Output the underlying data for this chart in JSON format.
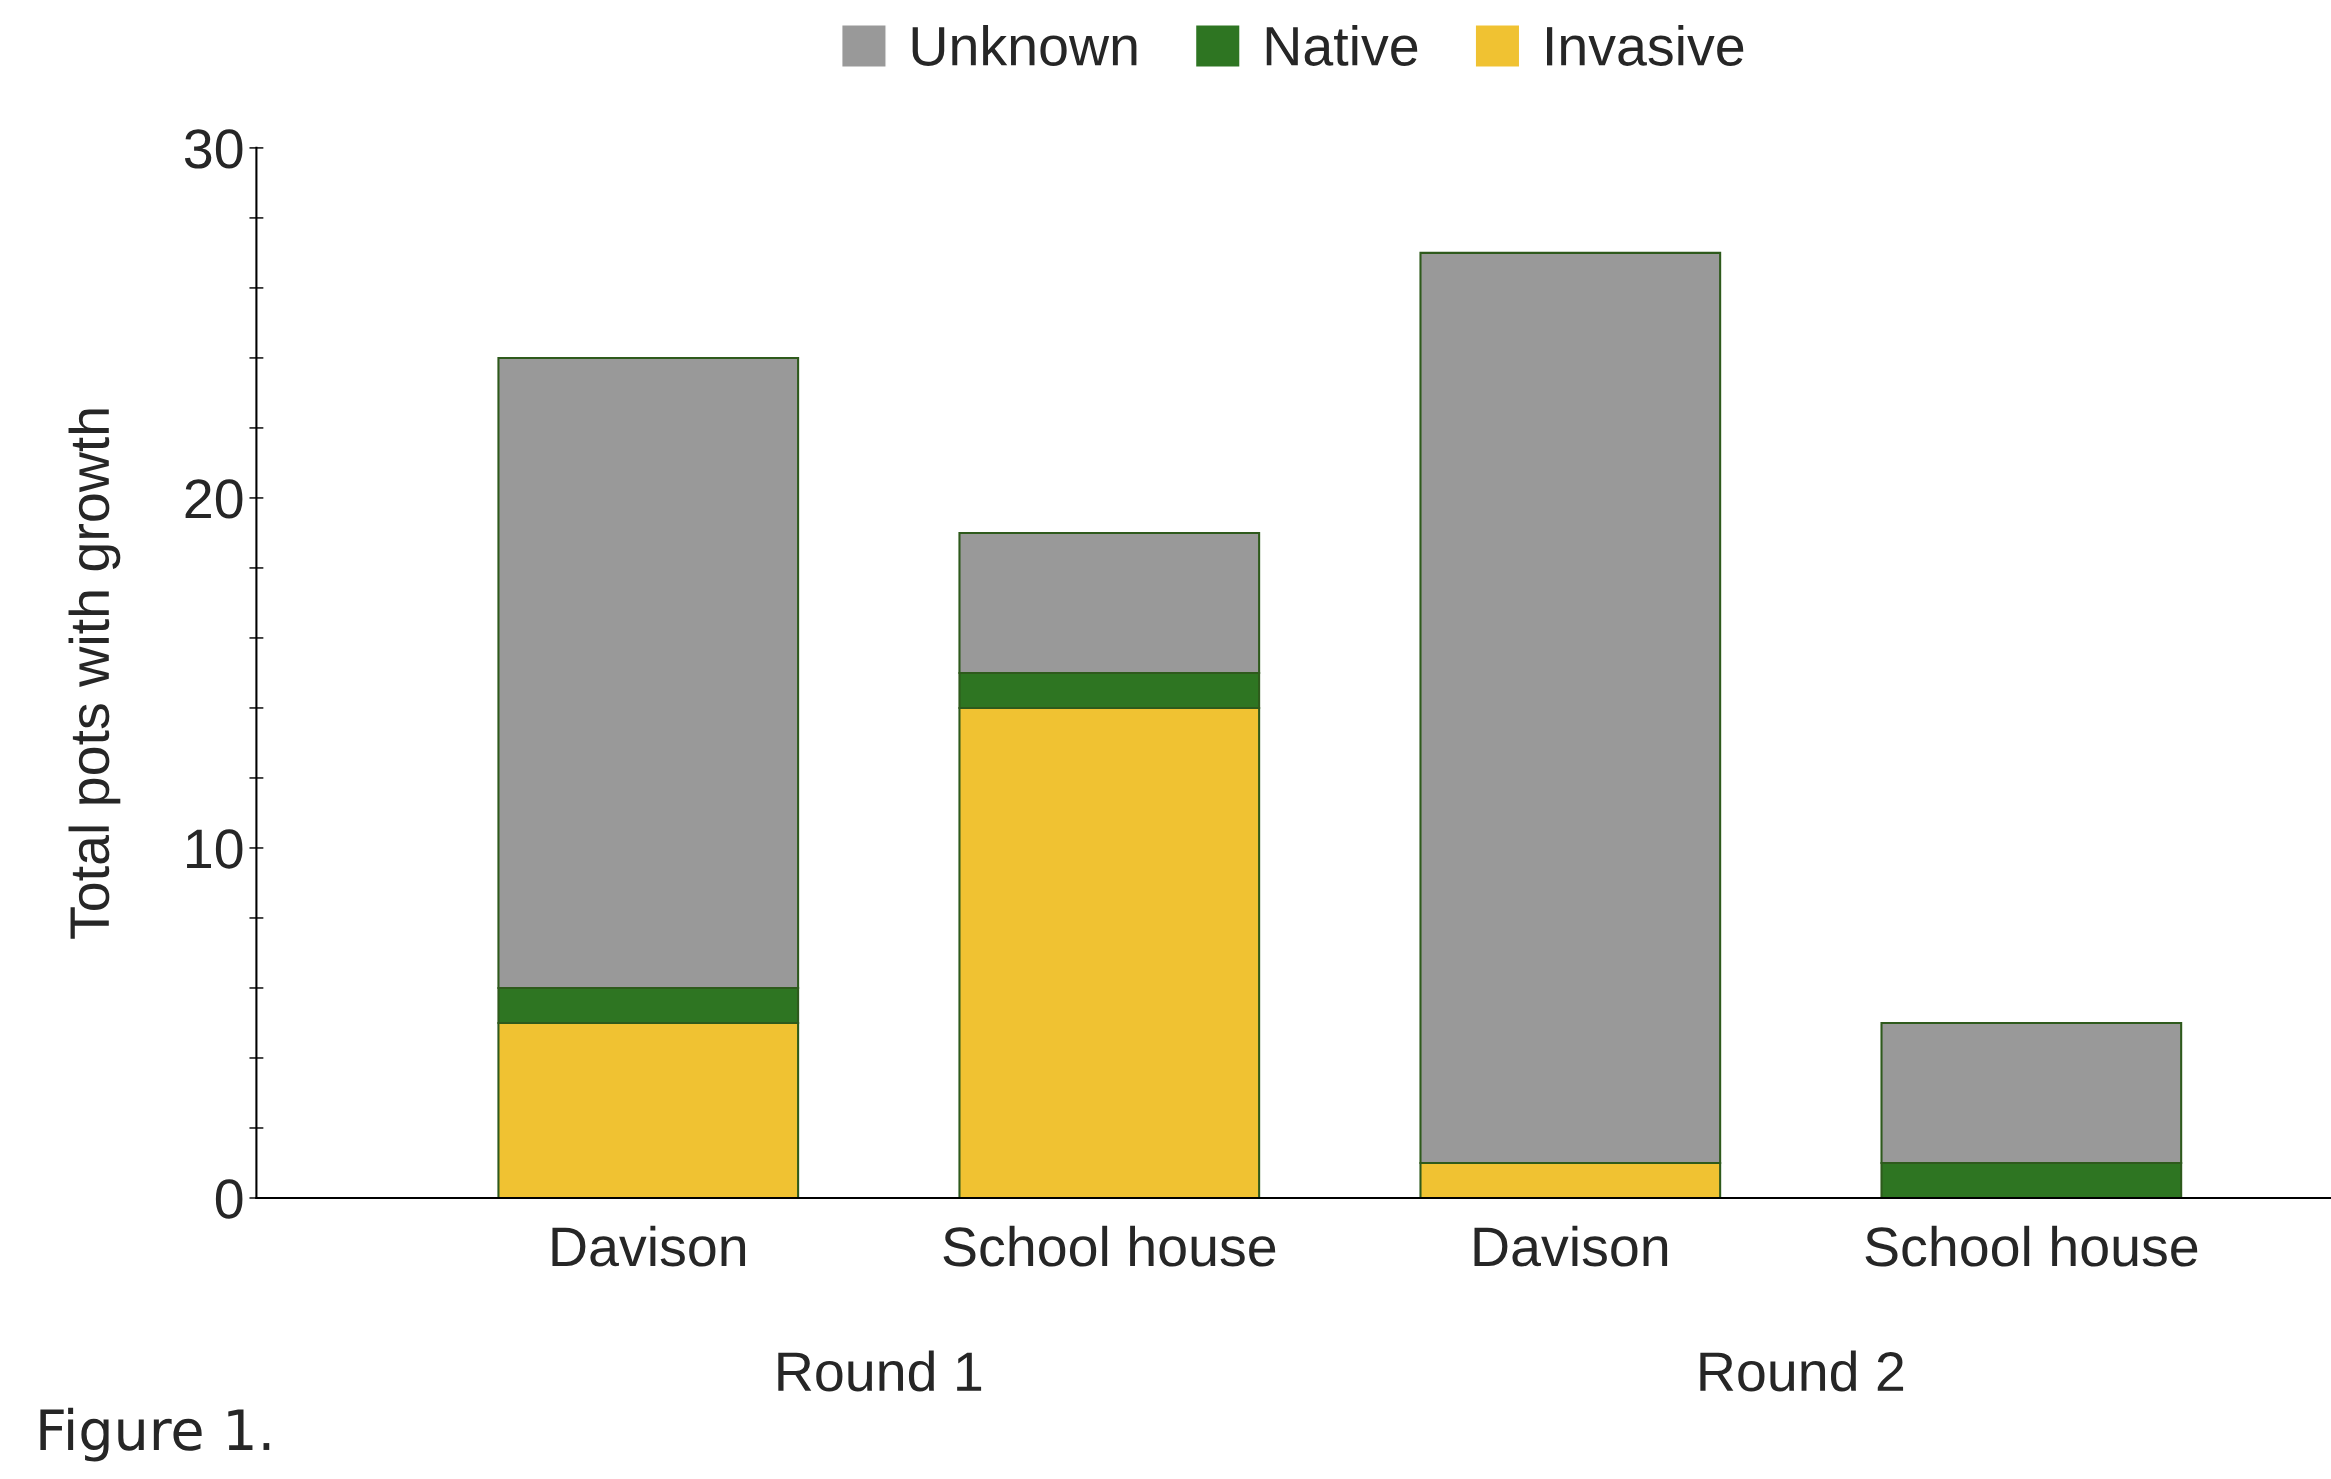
{
  "chart_data": {
    "type": "bar",
    "stacked": true,
    "ylabel": "Total pots with growth",
    "categories": [
      "Davison",
      "School house",
      "Davison",
      "School house"
    ],
    "series": [
      {
        "name": "Invasive",
        "color": "#f0c232",
        "values": [
          5,
          14,
          1,
          0
        ]
      },
      {
        "name": "Native",
        "color": "#2e7522",
        "values": [
          1,
          1,
          0,
          1
        ]
      },
      {
        "name": "Unknown",
        "color": "#999999",
        "values": [
          18,
          4,
          26,
          4
        ]
      }
    ],
    "ylim": [
      0,
      30
    ],
    "yticks": [
      0,
      {
        "value": 2,
        "label": null
      },
      {
        "value": 4,
        "label": null
      },
      {
        "value": 6,
        "label": null
      },
      {
        "value": 8,
        "label": null
      },
      10,
      {
        "value": 12,
        "label": null
      },
      {
        "value": 14,
        "label": null
      },
      {
        "value": 16,
        "label": null
      },
      {
        "value": 18,
        "label": null
      },
      20,
      {
        "value": 22,
        "label": null
      },
      {
        "value": 24,
        "label": null
      },
      {
        "value": 26,
        "label": null
      },
      {
        "value": 28,
        "label": null
      },
      30
    ],
    "annotations": [
      "Round 1",
      "Round 2",
      "Figure 1."
    ],
    "legend": "top",
    "grid": false
  }
}
